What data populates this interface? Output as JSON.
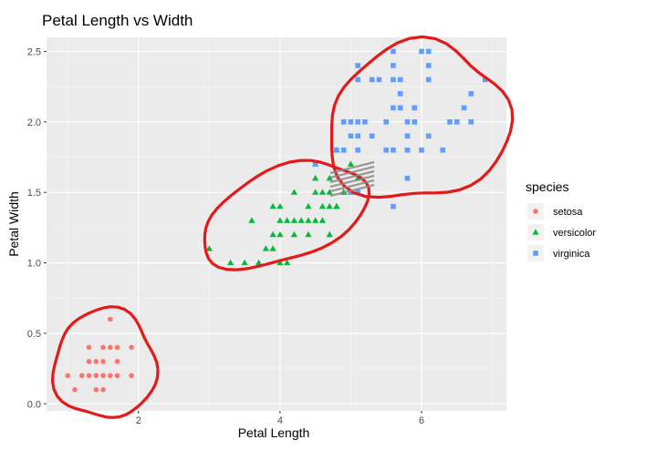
{
  "chart_data": {
    "type": "scatter",
    "title": "Petal Length vs Width",
    "xlabel": "Petal Length",
    "ylabel": "Petal Width",
    "xlim": [
      0.7,
      7.2
    ],
    "ylim": [
      -0.05,
      2.6
    ],
    "x_ticks": [
      2,
      4,
      6
    ],
    "y_ticks": [
      0.0,
      0.5,
      1.0,
      1.5,
      2.0,
      2.5
    ],
    "x_tick_labels": [
      "2",
      "4",
      "6"
    ],
    "y_tick_labels": [
      "0.0",
      "0.5",
      "1.0",
      "1.5",
      "2.0",
      "2.5"
    ],
    "grid": true,
    "background": "#ebebeb",
    "legend": {
      "title": "species",
      "position": "right"
    },
    "series": [
      {
        "name": "setosa",
        "marker": "circle",
        "color": "#F8766D",
        "points": [
          [
            1.0,
            0.2
          ],
          [
            1.1,
            0.1
          ],
          [
            1.2,
            0.2
          ],
          [
            1.3,
            0.2
          ],
          [
            1.4,
            0.2
          ],
          [
            1.5,
            0.2
          ],
          [
            1.6,
            0.2
          ],
          [
            1.7,
            0.2
          ],
          [
            1.9,
            0.2
          ],
          [
            1.4,
            0.1
          ],
          [
            1.5,
            0.1
          ],
          [
            1.3,
            0.3
          ],
          [
            1.4,
            0.3
          ],
          [
            1.5,
            0.3
          ],
          [
            1.7,
            0.3
          ],
          [
            1.5,
            0.4
          ],
          [
            1.6,
            0.4
          ],
          [
            1.7,
            0.4
          ],
          [
            1.9,
            0.4
          ],
          [
            1.3,
            0.4
          ],
          [
            1.6,
            0.6
          ]
        ]
      },
      {
        "name": "versicolor",
        "marker": "triangle",
        "color": "#00BA38",
        "points": [
          [
            3.0,
            1.1
          ],
          [
            3.3,
            1.0
          ],
          [
            3.5,
            1.0
          ],
          [
            3.7,
            1.0
          ],
          [
            3.9,
            1.1
          ],
          [
            3.8,
            1.1
          ],
          [
            4.0,
            1.0
          ],
          [
            4.1,
            1.0
          ],
          [
            3.6,
            1.3
          ],
          [
            3.9,
            1.2
          ],
          [
            4.0,
            1.2
          ],
          [
            4.2,
            1.2
          ],
          [
            4.4,
            1.2
          ],
          [
            4.7,
            1.2
          ],
          [
            3.9,
            1.4
          ],
          [
            4.0,
            1.3
          ],
          [
            4.1,
            1.3
          ],
          [
            4.2,
            1.3
          ],
          [
            4.3,
            1.3
          ],
          [
            4.4,
            1.3
          ],
          [
            4.5,
            1.3
          ],
          [
            4.6,
            1.3
          ],
          [
            4.0,
            1.4
          ],
          [
            4.4,
            1.4
          ],
          [
            4.6,
            1.4
          ],
          [
            4.7,
            1.4
          ],
          [
            4.8,
            1.4
          ],
          [
            4.2,
            1.5
          ],
          [
            4.5,
            1.5
          ],
          [
            4.6,
            1.5
          ],
          [
            4.7,
            1.5
          ],
          [
            4.9,
            1.5
          ],
          [
            4.5,
            1.6
          ],
          [
            4.7,
            1.6
          ],
          [
            4.8,
            1.8
          ],
          [
            5.0,
            1.7
          ],
          [
            5.1,
            1.6
          ],
          [
            4.9,
            1.5
          ],
          [
            4.5,
            1.7
          ],
          [
            4.8,
            1.4
          ],
          [
            5.0,
            1.5
          ]
        ]
      },
      {
        "name": "virginica",
        "marker": "square",
        "color": "#619CFF",
        "points": [
          [
            5.6,
            2.5
          ],
          [
            6.0,
            2.5
          ],
          [
            6.1,
            2.5
          ],
          [
            5.1,
            2.4
          ],
          [
            5.6,
            2.4
          ],
          [
            6.1,
            2.4
          ],
          [
            5.1,
            2.3
          ],
          [
            5.3,
            2.3
          ],
          [
            5.4,
            2.3
          ],
          [
            5.6,
            2.3
          ],
          [
            5.7,
            2.3
          ],
          [
            6.1,
            2.3
          ],
          [
            6.9,
            2.3
          ],
          [
            5.7,
            2.2
          ],
          [
            6.7,
            2.2
          ],
          [
            5.6,
            2.1
          ],
          [
            5.7,
            2.1
          ],
          [
            5.9,
            2.1
          ],
          [
            6.6,
            2.1
          ],
          [
            5.2,
            2.0
          ],
          [
            5.5,
            2.0
          ],
          [
            5.8,
            2.0
          ],
          [
            5.9,
            2.0
          ],
          [
            6.5,
            2.0
          ],
          [
            4.9,
            2.0
          ],
          [
            5.0,
            2.0
          ],
          [
            5.1,
            2.0
          ],
          [
            6.4,
            2.0
          ],
          [
            6.7,
            2.0
          ],
          [
            5.0,
            1.9
          ],
          [
            5.1,
            1.9
          ],
          [
            5.3,
            1.9
          ],
          [
            5.8,
            1.9
          ],
          [
            6.1,
            1.9
          ],
          [
            4.8,
            1.8
          ],
          [
            4.9,
            1.8
          ],
          [
            5.1,
            1.8
          ],
          [
            5.5,
            1.8
          ],
          [
            5.6,
            1.8
          ],
          [
            5.8,
            1.8
          ],
          [
            6.0,
            1.8
          ],
          [
            6.3,
            1.8
          ],
          [
            4.5,
            1.7
          ],
          [
            5.8,
            1.6
          ],
          [
            5.0,
            1.5
          ],
          [
            5.1,
            1.5
          ],
          [
            5.6,
            1.4
          ]
        ]
      }
    ],
    "annotations": [
      {
        "type": "hand-drawn-ellipse",
        "color": "#e21a1a",
        "encloses": "setosa"
      },
      {
        "type": "hand-drawn-ellipse",
        "color": "#e21a1a",
        "encloses": "versicolor"
      },
      {
        "type": "hand-drawn-ellipse",
        "color": "#e21a1a",
        "encloses": "virginica"
      },
      {
        "type": "hatch-overlap",
        "color": "#8a8a8a"
      }
    ]
  }
}
